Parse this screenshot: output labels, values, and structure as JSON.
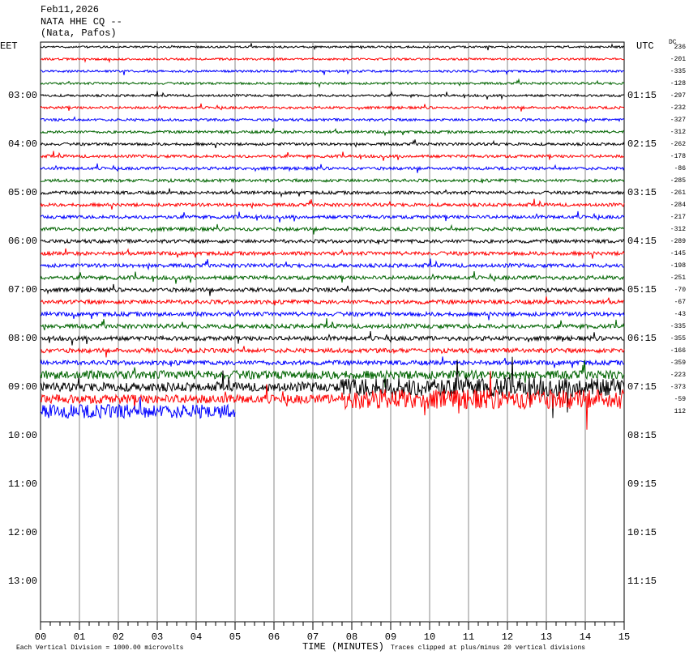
{
  "header": {
    "date": "Feb11,2026",
    "station": "NATA HHE CQ --",
    "location": "(Nata, Pafos)"
  },
  "left_axis": {
    "label": "EET",
    "hours": [
      "03:00",
      "04:00",
      "05:00",
      "06:00",
      "07:00",
      "08:00",
      "09:00",
      "10:00",
      "11:00",
      "12:00",
      "13:00"
    ]
  },
  "right_axis": {
    "label": "UTC",
    "hours": [
      "01:15",
      "02:15",
      "03:15",
      "04:15",
      "05:15",
      "06:15",
      "07:15",
      "08:15",
      "09:15",
      "10:15",
      "11:15"
    ]
  },
  "dc": {
    "label": "DC",
    "values": [
      236,
      -201,
      -335,
      -128,
      -297,
      -232,
      -327,
      -312,
      -262,
      -178,
      -86,
      -285,
      -261,
      -284,
      -217,
      -312,
      -289,
      -145,
      -198,
      -251,
      -70,
      -67,
      -43,
      -335,
      -355,
      -166,
      -359,
      -223,
      -373,
      -59,
      112
    ]
  },
  "x_axis": {
    "label": "TIME (MINUTES)",
    "ticks": [
      "00",
      "01",
      "02",
      "03",
      "04",
      "05",
      "06",
      "07",
      "08",
      "09",
      "10",
      "11",
      "12",
      "13",
      "14",
      "15"
    ]
  },
  "footer": {
    "scale": "Each Vertical Division = 1000.00 microvolts",
    "clip": "Traces clipped at plus/minus 20 vertical divisions"
  },
  "trace_colors": [
    "#000000",
    "#ff0000",
    "#0000ff",
    "#006400"
  ]
}
